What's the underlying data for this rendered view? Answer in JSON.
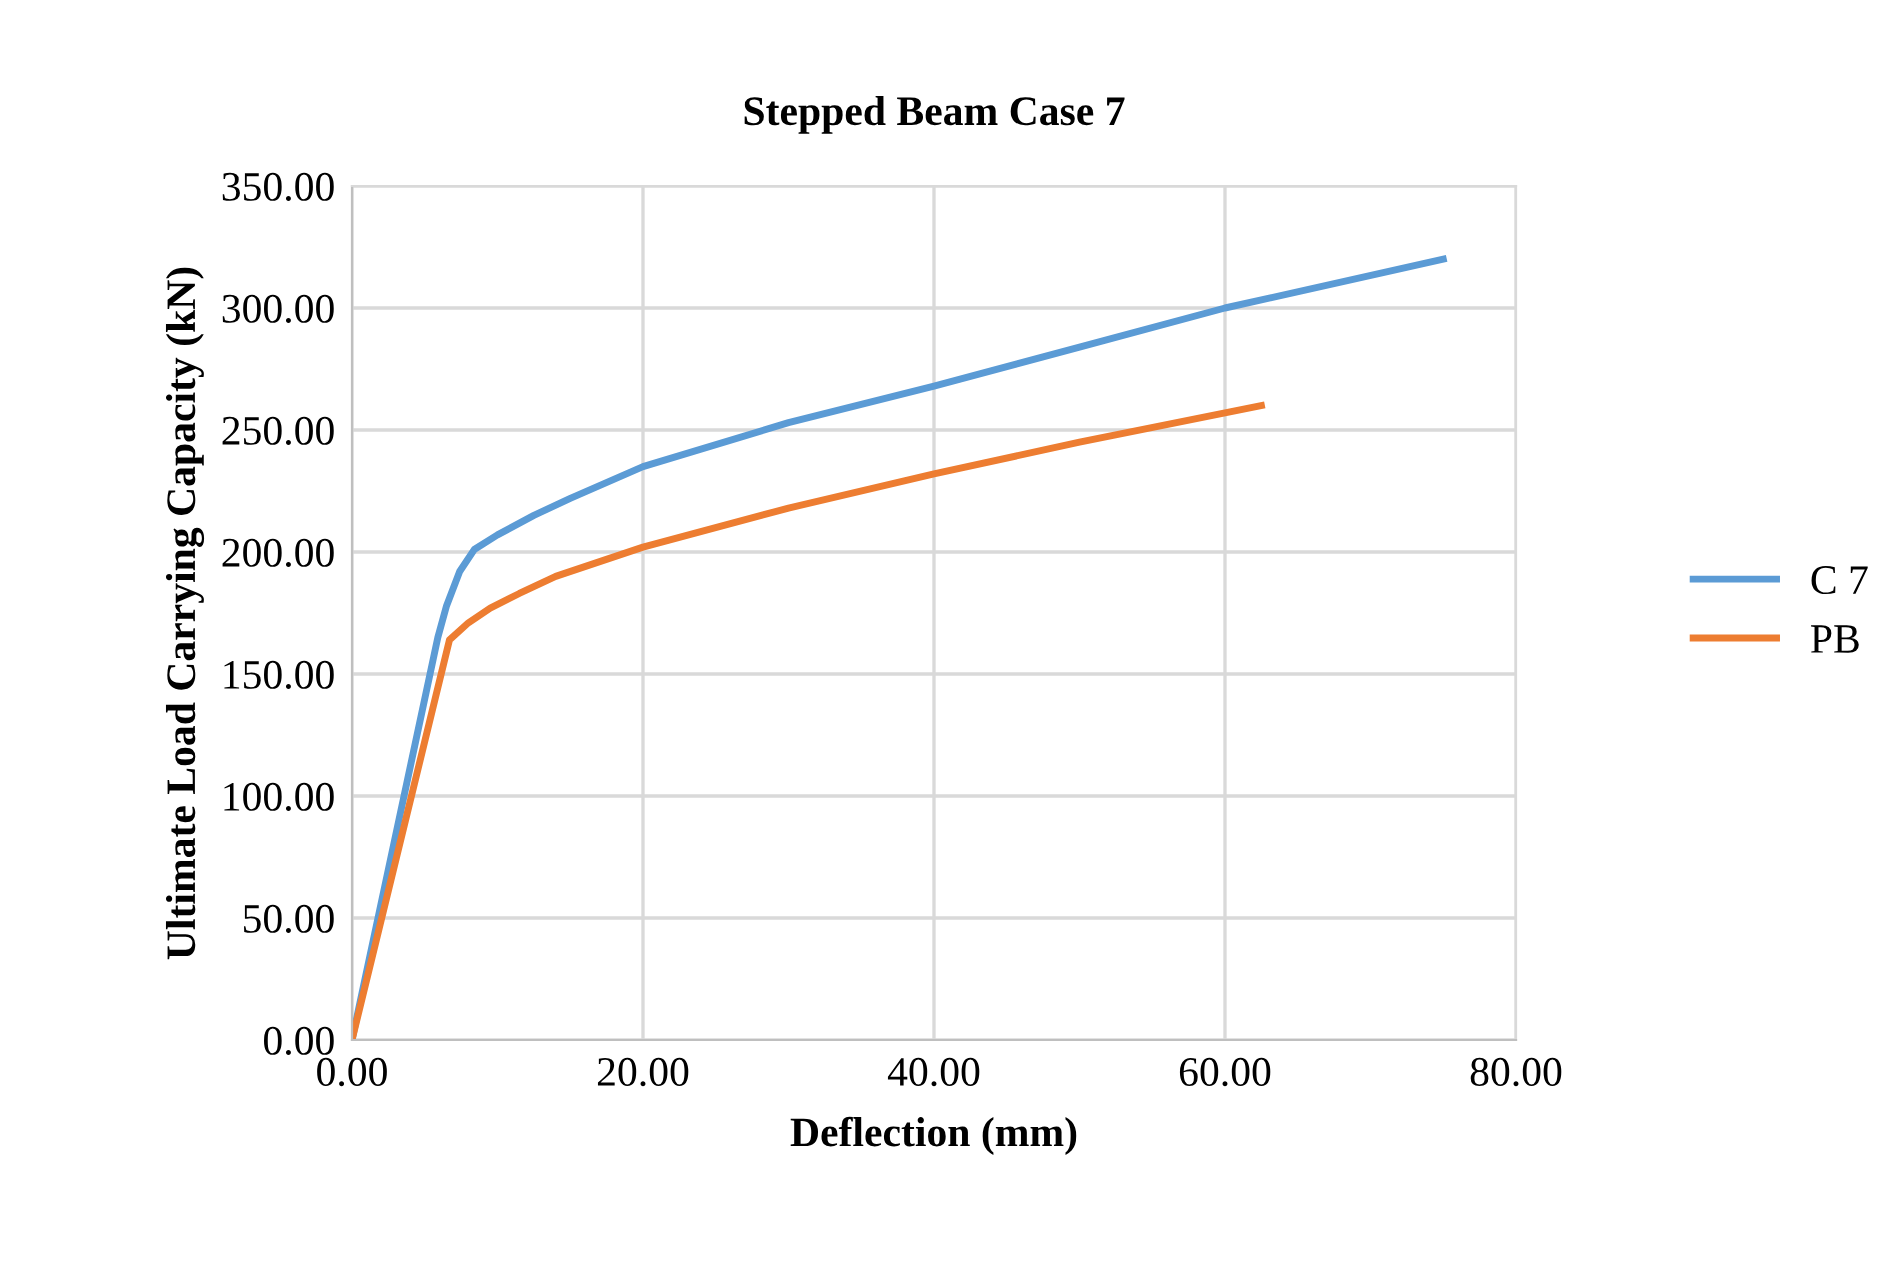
{
  "chart_data": {
    "type": "line",
    "title": "Stepped Beam Case 7",
    "xlabel": "Deflection (mm)",
    "ylabel": "Ultimate Load Carrying Capacity (kN)",
    "xlim": [
      0,
      80
    ],
    "ylim": [
      0,
      350
    ],
    "xticks": [
      {
        "value": 0,
        "label": "0.00"
      },
      {
        "value": 20,
        "label": "20.00"
      },
      {
        "value": 40,
        "label": "40.00"
      },
      {
        "value": 60,
        "label": "60.00"
      },
      {
        "value": 80,
        "label": "80.00"
      }
    ],
    "yticks": [
      {
        "value": 0,
        "label": "0.00"
      },
      {
        "value": 50,
        "label": "50.00"
      },
      {
        "value": 100,
        "label": "100.00"
      },
      {
        "value": 150,
        "label": "150.00"
      },
      {
        "value": 200,
        "label": "200.00"
      },
      {
        "value": 250,
        "label": "250.00"
      },
      {
        "value": 300,
        "label": "300.00"
      },
      {
        "value": 350,
        "label": "350.00"
      }
    ],
    "grid": true,
    "legend": "right",
    "marker": "none",
    "line_style": "solid",
    "series": [
      {
        "name": "C 7",
        "color": "#5b9bd5",
        "x": [
          0,
          5.9,
          6.5,
          7.4,
          8.4,
          10,
          12.5,
          15,
          20,
          30,
          40,
          50,
          60,
          75
        ],
        "values": [
          0,
          165,
          178,
          192,
          201,
          207,
          215,
          222,
          235,
          253,
          268,
          284,
          300,
          320
        ]
      },
      {
        "name": "PB",
        "color": "#ed7d31",
        "x": [
          0,
          6.7,
          8,
          9.5,
          11.5,
          14,
          20,
          30,
          40,
          50,
          62.5
        ],
        "values": [
          0,
          164,
          171,
          177,
          183,
          190,
          202,
          218,
          232,
          245,
          260
        ]
      }
    ]
  }
}
